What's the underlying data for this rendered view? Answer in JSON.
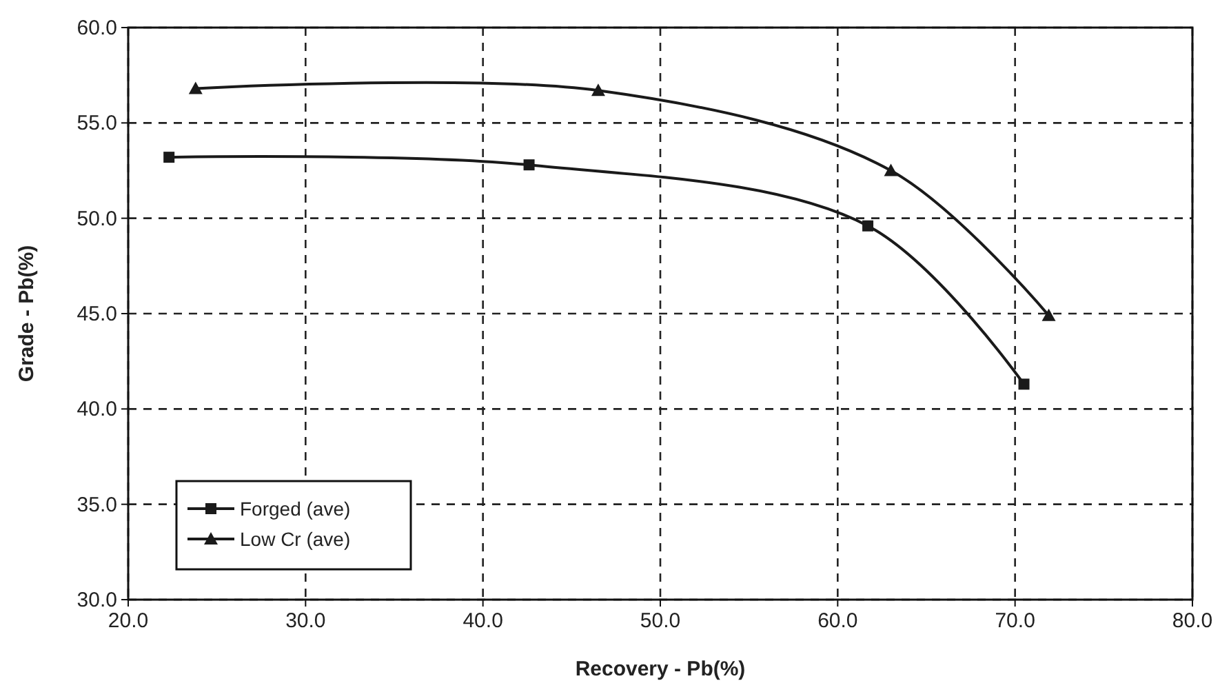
{
  "chart_data": {
    "type": "line",
    "xlabel": "Recovery - Pb(%)",
    "ylabel": "Grade - Pb(%)",
    "xlim": [
      20,
      80
    ],
    "xticks": [
      {
        "value": 20,
        "label": "20.0"
      },
      {
        "value": 30,
        "label": "30.0"
      },
      {
        "value": 40,
        "label": "40.0"
      },
      {
        "value": 50,
        "label": "50.0"
      },
      {
        "value": 60,
        "label": "60.0"
      },
      {
        "value": 70,
        "label": "70.0"
      },
      {
        "value": 80,
        "label": "80.0"
      }
    ],
    "ylim": [
      30,
      60
    ],
    "yticks": [
      {
        "value": 30,
        "label": "30.0"
      },
      {
        "value": 35,
        "label": "35.0"
      },
      {
        "value": 40,
        "label": "40.0"
      },
      {
        "value": 45,
        "label": "45.0"
      },
      {
        "value": 50,
        "label": "50.0"
      },
      {
        "value": 55,
        "label": "55.0"
      },
      {
        "value": 60,
        "label": "60.0"
      }
    ],
    "grid": true,
    "legend": "bottom left",
    "line_style": "solid",
    "series": [
      {
        "name": "Forged (ave)",
        "color": "#1a1a1a",
        "marker": "square",
        "x": [
          22.3,
          42.6,
          61.7,
          70.5
        ],
        "values": [
          53.2,
          52.8,
          49.6,
          41.3
        ]
      },
      {
        "name": "Low Cr (ave)",
        "color": "#1a1a1a",
        "marker": "triangle",
        "x": [
          23.8,
          46.5,
          63.0,
          71.9
        ],
        "values": [
          56.8,
          56.7,
          52.5,
          44.9
        ]
      }
    ]
  }
}
